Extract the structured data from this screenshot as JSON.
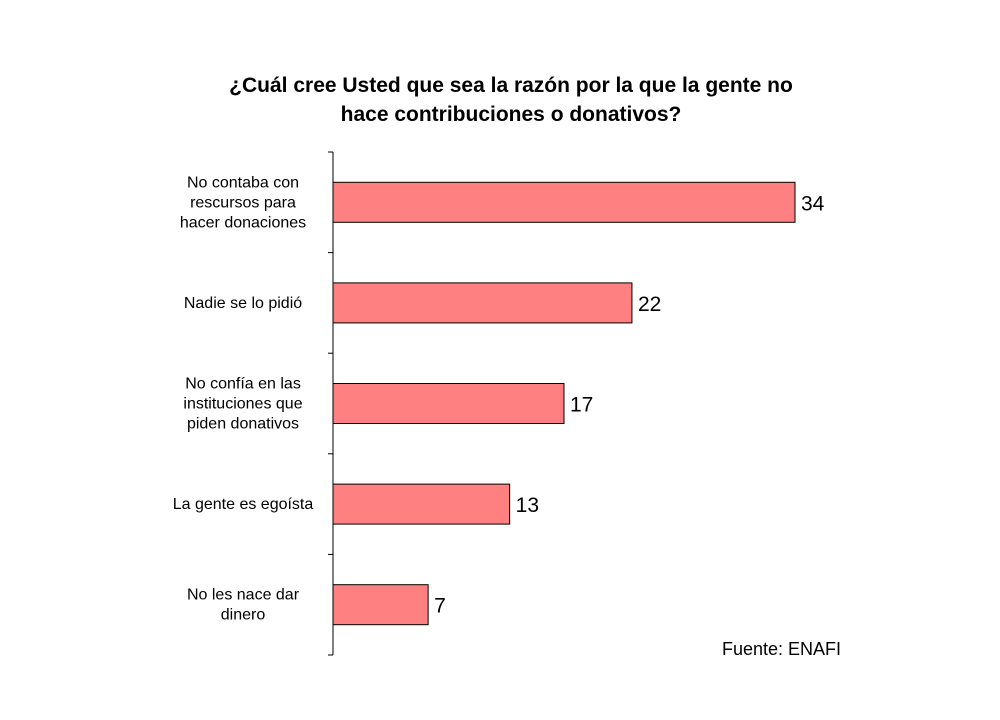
{
  "chart_data": {
    "type": "bar",
    "orientation": "horizontal",
    "title": "¿Cuál cree Usted que sea la razón por la que la gente no hace contribuciones o donativos?",
    "title_lines": [
      "¿Cuál cree Usted que sea la razón por la que la gente no",
      "hace contribuciones o donativos?"
    ],
    "categories": [
      "No contaba con rescursos para hacer donaciones",
      "Nadie se lo pidió",
      "No confía en las instituciones que piden donativos",
      "La gente es egoísta",
      "No les nace dar dinero"
    ],
    "category_lines": [
      [
        "No contaba con",
        "rescursos para",
        "hacer donaciones"
      ],
      [
        "Nadie se lo pidió"
      ],
      [
        "No confía en las",
        "instituciones que",
        "piden donativos"
      ],
      [
        "La gente es egoísta"
      ],
      [
        "No les nace dar",
        "dinero"
      ]
    ],
    "values": [
      34,
      22,
      17,
      13,
      7
    ],
    "data_labels": [
      "34",
      "22",
      "17",
      "13",
      "7"
    ],
    "xlim": [
      0,
      40
    ],
    "bar_color": "#ff8080",
    "bar_edge_color": "#000000",
    "grid": false,
    "legend": "none",
    "xlabel": "",
    "ylabel": ""
  },
  "source": "Fuente: ENAFI"
}
